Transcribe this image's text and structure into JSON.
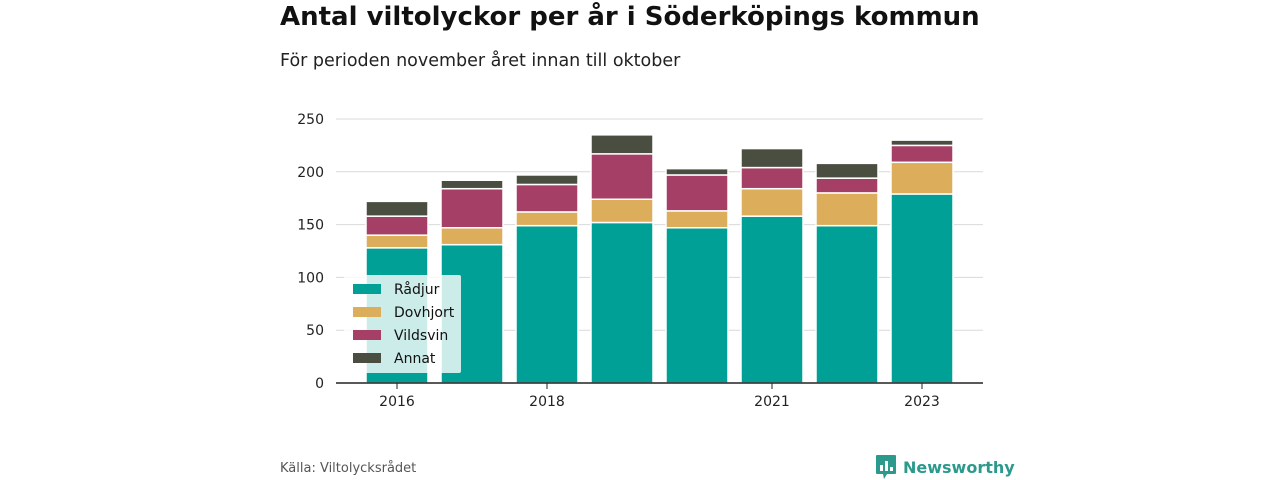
{
  "chart_data": {
    "type": "bar",
    "stacked": true,
    "title": "Antal viltolyckor per år i Söderköpings kommun",
    "subtitle": "För perioden november året innan till oktober",
    "categories": [
      "2016",
      "2017",
      "2018",
      "2019",
      "2020",
      "2021",
      "2022",
      "2023"
    ],
    "x_tick_labels": [
      "2016",
      "",
      "2018",
      "",
      "",
      "2021",
      "",
      "2023"
    ],
    "series": [
      {
        "name": "Rådjur",
        "color": "#00a096",
        "values": [
          128,
          131,
          149,
          152,
          147,
          158,
          149,
          179
        ]
      },
      {
        "name": "Dovhjort",
        "color": "#dcad5a",
        "values": [
          12,
          16,
          13,
          22,
          16,
          26,
          31,
          30
        ]
      },
      {
        "name": "Vildsvin",
        "color": "#a63f66",
        "values": [
          18,
          37,
          26,
          43,
          34,
          20,
          14,
          16
        ]
      },
      {
        "name": "Annat",
        "color": "#4a4e40",
        "values": [
          14,
          8,
          9,
          18,
          6,
          18,
          14,
          5
        ]
      }
    ],
    "ylim": [
      0,
      250
    ],
    "yticks": [
      0,
      50,
      100,
      150,
      200,
      250
    ],
    "grid": true,
    "legend_position": "bottom-left inside plot"
  },
  "footer": {
    "source": "Källa: Viltolycksrådet",
    "brand": "Newsworthy",
    "brand_icon": "newsworthy-logo-icon"
  }
}
